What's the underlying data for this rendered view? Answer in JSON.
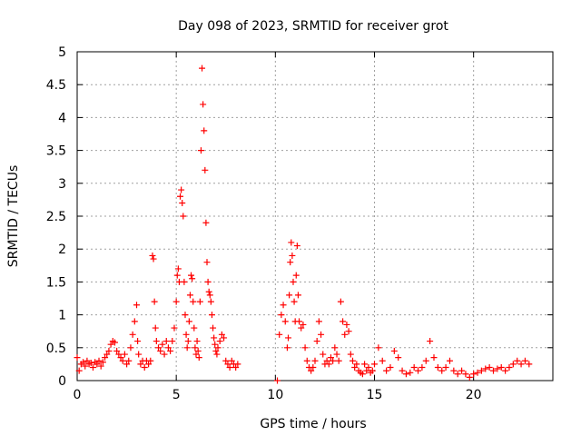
{
  "chart_data": {
    "type": "scatter",
    "title": "Day 098 of 2023, SRMTID for receiver grot",
    "xlabel": "GPS time / hours",
    "ylabel": "SRMTID / TECUs",
    "xlim": [
      0,
      24
    ],
    "ylim": [
      0,
      5
    ],
    "xticks": [
      0,
      5,
      10,
      15,
      20
    ],
    "xtick_labels": [
      "0",
      "5",
      "10",
      "15",
      "20"
    ],
    "yticks": [
      0,
      0.5,
      1,
      1.5,
      2,
      2.5,
      3,
      3.5,
      4,
      4.5,
      5
    ],
    "ytick_labels": [
      "0",
      "0.5",
      "1",
      "1.5",
      "2",
      "2.5",
      "3",
      "3.5",
      "4",
      "4.5",
      "5"
    ],
    "grid": true,
    "marker": "+",
    "marker_color": "#ff0000",
    "series": [
      {
        "name": "SRMTID",
        "x": [
          0.0,
          0.1,
          0.2,
          0.3,
          0.4,
          0.5,
          0.6,
          0.7,
          0.8,
          0.9,
          1.0,
          1.1,
          1.2,
          1.3,
          1.4,
          1.5,
          1.6,
          1.7,
          1.8,
          1.9,
          2.0,
          2.1,
          2.2,
          2.3,
          2.4,
          2.5,
          2.6,
          2.7,
          2.8,
          2.9,
          3.0,
          3.05,
          3.1,
          3.2,
          3.3,
          3.4,
          3.5,
          3.6,
          3.7,
          3.8,
          3.85,
          3.9,
          3.95,
          4.0,
          4.1,
          4.2,
          4.3,
          4.4,
          4.5,
          4.6,
          4.7,
          4.8,
          4.9,
          5.0,
          5.05,
          5.1,
          5.15,
          5.2,
          5.25,
          5.3,
          5.35,
          5.4,
          5.45,
          5.5,
          5.55,
          5.6,
          5.65,
          5.7,
          5.75,
          5.8,
          5.85,
          5.9,
          5.95,
          6.0,
          6.05,
          6.1,
          6.15,
          6.2,
          6.25,
          6.3,
          6.35,
          6.4,
          6.45,
          6.5,
          6.55,
          6.6,
          6.65,
          6.7,
          6.75,
          6.8,
          6.85,
          6.9,
          6.95,
          7.0,
          7.05,
          7.1,
          7.2,
          7.3,
          7.4,
          7.5,
          7.6,
          7.7,
          7.8,
          7.9,
          8.0,
          8.1,
          10.1,
          10.2,
          10.3,
          10.4,
          10.5,
          10.6,
          10.65,
          10.7,
          10.75,
          10.8,
          10.85,
          10.9,
          10.95,
          11.0,
          11.05,
          11.1,
          11.15,
          11.2,
          11.3,
          11.4,
          11.5,
          11.6,
          11.7,
          11.8,
          11.9,
          12.0,
          12.1,
          12.2,
          12.3,
          12.4,
          12.5,
          12.6,
          12.7,
          12.8,
          12.9,
          13.0,
          13.1,
          13.2,
          13.3,
          13.4,
          13.5,
          13.6,
          13.7,
          13.8,
          13.9,
          14.0,
          14.1,
          14.2,
          14.3,
          14.4,
          14.5,
          14.6,
          14.7,
          14.8,
          14.9,
          15.0,
          15.2,
          15.4,
          15.6,
          15.8,
          16.0,
          16.2,
          16.4,
          16.6,
          16.8,
          17.0,
          17.2,
          17.4,
          17.6,
          17.8,
          18.0,
          18.2,
          18.4,
          18.6,
          18.8,
          19.0,
          19.2,
          19.4,
          19.6,
          19.8,
          20.0,
          20.2,
          20.4,
          20.6,
          20.8,
          21.0,
          21.2,
          21.4,
          21.6,
          21.8,
          22.0,
          22.2,
          22.4,
          22.6,
          22.8
        ],
        "y": [
          0.35,
          0.15,
          0.25,
          0.28,
          0.22,
          0.3,
          0.25,
          0.27,
          0.2,
          0.28,
          0.25,
          0.3,
          0.22,
          0.28,
          0.35,
          0.4,
          0.45,
          0.55,
          0.6,
          0.58,
          0.45,
          0.4,
          0.35,
          0.3,
          0.4,
          0.25,
          0.3,
          0.5,
          0.7,
          0.9,
          1.15,
          0.6,
          0.4,
          0.25,
          0.3,
          0.2,
          0.3,
          0.25,
          0.3,
          1.9,
          1.85,
          1.2,
          0.8,
          0.6,
          0.5,
          0.45,
          0.55,
          0.4,
          0.6,
          0.5,
          0.45,
          0.6,
          0.8,
          1.2,
          1.6,
          1.7,
          1.5,
          2.8,
          2.9,
          2.7,
          2.5,
          1.5,
          1.0,
          0.7,
          0.5,
          0.6,
          0.9,
          1.3,
          1.6,
          1.55,
          1.2,
          0.8,
          0.5,
          0.4,
          0.6,
          0.45,
          0.35,
          1.2,
          3.5,
          4.75,
          4.2,
          3.8,
          3.2,
          2.4,
          1.8,
          1.5,
          1.35,
          1.3,
          1.2,
          1.0,
          0.8,
          0.65,
          0.55,
          0.45,
          0.4,
          0.5,
          0.6,
          0.7,
          0.65,
          0.3,
          0.25,
          0.2,
          0.3,
          0.25,
          0.2,
          0.25,
          0.0,
          0.7,
          1.0,
          1.15,
          0.9,
          0.5,
          0.65,
          1.3,
          1.8,
          2.1,
          1.9,
          1.5,
          1.2,
          0.9,
          1.6,
          2.05,
          1.3,
          0.9,
          0.8,
          0.85,
          0.5,
          0.3,
          0.2,
          0.15,
          0.2,
          0.3,
          0.6,
          0.9,
          0.7,
          0.4,
          0.25,
          0.3,
          0.25,
          0.35,
          0.3,
          0.5,
          0.4,
          0.3,
          1.2,
          0.9,
          0.7,
          0.85,
          0.75,
          0.4,
          0.3,
          0.2,
          0.25,
          0.15,
          0.12,
          0.1,
          0.25,
          0.15,
          0.2,
          0.12,
          0.15,
          0.25,
          0.5,
          0.3,
          0.15,
          0.2,
          0.45,
          0.35,
          0.15,
          0.1,
          0.12,
          0.2,
          0.15,
          0.2,
          0.3,
          0.6,
          0.35,
          0.2,
          0.15,
          0.2,
          0.3,
          0.15,
          0.1,
          0.15,
          0.1,
          0.05,
          0.1,
          0.12,
          0.15,
          0.18,
          0.2,
          0.15,
          0.18,
          0.2,
          0.15,
          0.2,
          0.25,
          0.3,
          0.25,
          0.3,
          0.25
        ]
      }
    ]
  }
}
